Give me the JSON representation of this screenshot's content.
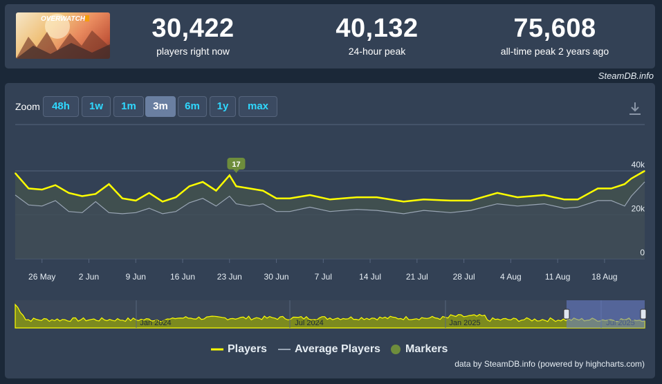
{
  "header": {
    "image_alt": "OVERWATCH",
    "stats": [
      {
        "value": "30,422",
        "label": "players right now"
      },
      {
        "value": "40,132",
        "label": "24-hour peak"
      },
      {
        "value": "75,608",
        "label": "all-time peak 2 years ago"
      }
    ],
    "credit": "SteamDB.info"
  },
  "zoom": {
    "label": "Zoom",
    "buttons": [
      "48h",
      "1w",
      "1m",
      "3m",
      "6m",
      "1y",
      "max"
    ],
    "active": "3m"
  },
  "legend": {
    "players": "Players",
    "average": "Average Players",
    "markers": "Markers"
  },
  "footer_credit": "data by SteamDB.info (powered by highcharts.com)",
  "colors": {
    "players": "#ffff00",
    "average": "#9aa6b5",
    "marker": "#6e8d3c",
    "navigator_fill": "#7c8a1f"
  },
  "chart_data": {
    "type": "line",
    "x_tick_labels": [
      "26 May",
      "2 Jun",
      "9 Jun",
      "16 Jun",
      "23 Jun",
      "30 Jun",
      "7 Jul",
      "14 Jul",
      "21 Jul",
      "28 Jul",
      "4 Aug",
      "11 Aug",
      "18 Aug"
    ],
    "y_tick_labels": [
      "0",
      "20k",
      "40k"
    ],
    "ylim": [
      0,
      40000
    ],
    "grid": true,
    "marker": {
      "label": "17",
      "x": "2025-06-24"
    },
    "series": [
      {
        "name": "Players",
        "x": [
          "2025-05-22",
          "2025-05-24",
          "2025-05-26",
          "2025-05-28",
          "2025-05-30",
          "2025-06-01",
          "2025-06-03",
          "2025-06-05",
          "2025-06-07",
          "2025-06-09",
          "2025-06-11",
          "2025-06-13",
          "2025-06-15",
          "2025-06-17",
          "2025-06-19",
          "2025-06-21",
          "2025-06-23",
          "2025-06-24",
          "2025-06-26",
          "2025-06-28",
          "2025-06-30",
          "2025-07-02",
          "2025-07-05",
          "2025-07-08",
          "2025-07-12",
          "2025-07-15",
          "2025-07-19",
          "2025-07-22",
          "2025-07-26",
          "2025-07-29",
          "2025-08-02",
          "2025-08-05",
          "2025-08-09",
          "2025-08-12",
          "2025-08-14",
          "2025-08-17",
          "2025-08-19",
          "2025-08-21",
          "2025-08-22",
          "2025-08-24"
        ],
        "values": [
          39000,
          32000,
          31500,
          33500,
          30000,
          28500,
          29500,
          34000,
          27500,
          26500,
          30000,
          26000,
          28000,
          33000,
          35000,
          31000,
          38000,
          33000,
          32000,
          31000,
          27500,
          27500,
          29000,
          27000,
          28000,
          28000,
          26000,
          27000,
          26500,
          26500,
          30000,
          28000,
          29000,
          27000,
          27000,
          32000,
          32000,
          34000,
          36500,
          40000
        ]
      },
      {
        "name": "Average Players",
        "x": [
          "2025-05-22",
          "2025-05-24",
          "2025-05-26",
          "2025-05-28",
          "2025-05-30",
          "2025-06-01",
          "2025-06-03",
          "2025-06-05",
          "2025-06-07",
          "2025-06-09",
          "2025-06-11",
          "2025-06-13",
          "2025-06-15",
          "2025-06-17",
          "2025-06-19",
          "2025-06-21",
          "2025-06-23",
          "2025-06-24",
          "2025-06-26",
          "2025-06-28",
          "2025-06-30",
          "2025-07-02",
          "2025-07-05",
          "2025-07-08",
          "2025-07-12",
          "2025-07-15",
          "2025-07-19",
          "2025-07-22",
          "2025-07-26",
          "2025-07-29",
          "2025-08-02",
          "2025-08-05",
          "2025-08-09",
          "2025-08-12",
          "2025-08-14",
          "2025-08-17",
          "2025-08-19",
          "2025-08-21",
          "2025-08-22",
          "2025-08-24"
        ],
        "values": [
          29000,
          24500,
          24000,
          26500,
          21500,
          21000,
          26000,
          21000,
          20500,
          21000,
          23000,
          20500,
          21500,
          25500,
          27500,
          24000,
          28500,
          25000,
          24000,
          25000,
          21500,
          21500,
          23500,
          21500,
          22500,
          22000,
          20500,
          22000,
          21000,
          22000,
          25000,
          24000,
          25000,
          23000,
          23500,
          26500,
          26500,
          24000,
          28500,
          35000
        ]
      }
    ]
  },
  "navigator": {
    "labels": [
      "Jan 2024",
      "Jul 2024",
      "Jan 2025",
      "Jul 2025"
    ]
  }
}
